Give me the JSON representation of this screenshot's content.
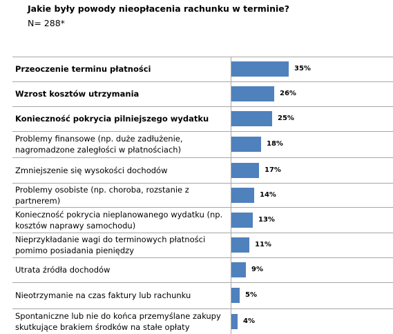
{
  "title": "Jakie były powody nieopłacenia rachunku w terminie?",
  "subtitle": "N= 288*",
  "chart_data": {
    "type": "bar",
    "orientation": "horizontal",
    "categories": [
      "Przeoczenie terminu płatności",
      "Wzrost kosztów utrzymania",
      "Konieczność pokrycia pilniejszego wydatku",
      "Problemy finansowe (np. duże zadłużenie, nagromadzone zaległości w płatnościach)",
      "Zmniejszenie się wysokości dochodów",
      "Problemy osobiste (np. choroba, rozstanie z partnerem)",
      "Konieczność pokrycia nieplanowanego wydatku (np. kosztów naprawy samochodu)",
      "Nieprzykładanie wagi do terminowych płatności pomimo posiadania pieniędzy",
      "Utrata źródła dochodów",
      "Nieotrzymanie na czas faktury lub rachunku",
      "Spontaniczne lub nie do końca przemyślane zakupy skutkujące brakiem środków na stałe opłaty"
    ],
    "values": [
      35,
      26,
      25,
      18,
      17,
      14,
      13,
      11,
      9,
      5,
      4
    ],
    "labels": [
      "35%",
      "26%",
      "25%",
      "18%",
      "17%",
      "14%",
      "13%",
      "11%",
      "9%",
      "5%",
      "4%"
    ],
    "bold_categories": [
      0,
      1,
      2
    ],
    "bar_color": "#4f81bd",
    "xlim": [
      0,
      100
    ],
    "grid": false
  }
}
